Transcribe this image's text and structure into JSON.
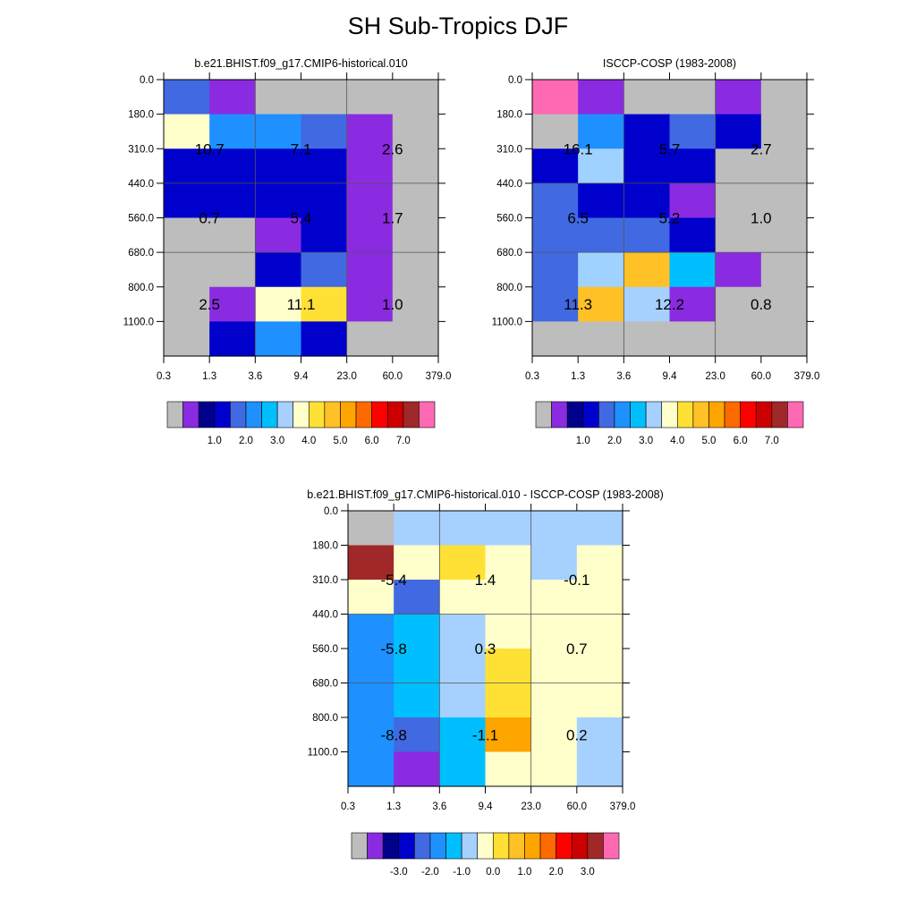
{
  "page_title": "SH Sub-Tropics DJF",
  "chart_data": [
    {
      "type": "heatmap",
      "id": "model",
      "title": "b.e21.BHIST.f09_g17.CMIP6-historical.010",
      "x_ticks": [
        "0.3",
        "1.3",
        "3.6",
        "9.4",
        "23.0",
        "60.0",
        "379.0"
      ],
      "y_ticks": [
        "0.0",
        "180.0",
        "310.0",
        "440.0",
        "560.0",
        "680.0",
        "800.0",
        "1100.0"
      ],
      "cells_note": "cells[row][col]; rows top (0.0 hPa) to bottom (1100.0 hPa); values are palette color indices",
      "cells": [
        [
          4,
          1,
          0,
          0,
          0,
          0
        ],
        [
          9,
          5,
          5,
          4,
          1,
          0
        ],
        [
          3,
          3,
          3,
          3,
          1,
          0
        ],
        [
          3,
          3,
          3,
          3,
          1,
          0
        ],
        [
          0,
          0,
          1,
          3,
          1,
          0
        ],
        [
          0,
          0,
          3,
          4,
          1,
          0
        ],
        [
          0,
          1,
          9,
          10,
          1,
          0
        ],
        [
          0,
          3,
          5,
          3,
          0,
          0
        ]
      ],
      "block_labels": [
        {
          "label": "10.7",
          "col_block": 0,
          "row_block": 0
        },
        {
          "label": "7.1",
          "col_block": 1,
          "row_block": 0
        },
        {
          "label": "2.6",
          "col_block": 2,
          "row_block": 0
        },
        {
          "label": "0.7",
          "col_block": 0,
          "row_block": 1
        },
        {
          "label": "5.4",
          "col_block": 1,
          "row_block": 1
        },
        {
          "label": "1.7",
          "col_block": 2,
          "row_block": 1
        },
        {
          "label": "2.5",
          "col_block": 0,
          "row_block": 2
        },
        {
          "label": "11.1",
          "col_block": 1,
          "row_block": 2
        },
        {
          "label": "1.0",
          "col_block": 2,
          "row_block": 2
        }
      ],
      "colorbar_labels": [
        "1.0",
        "2.0",
        "3.0",
        "4.0",
        "5.0",
        "6.0",
        "7.0"
      ]
    },
    {
      "type": "heatmap",
      "id": "obs",
      "title": "ISCCP-COSP (1983-2008)",
      "x_ticks": [
        "0.3",
        "1.3",
        "3.6",
        "9.4",
        "23.0",
        "60.0",
        "379.0"
      ],
      "y_ticks": [
        "0.0",
        "180.0",
        "310.0",
        "440.0",
        "560.0",
        "680.0",
        "800.0",
        "1100.0"
      ],
      "cells_note": "cells[row][col]; rows top (0.0 hPa) to bottom (1100.0 hPa); values are palette color indices",
      "cells": [
        [
          17,
          1,
          0,
          0,
          1,
          0
        ],
        [
          0,
          5,
          3,
          4,
          3,
          0
        ],
        [
          3,
          7,
          3,
          3,
          0,
          0
        ],
        [
          4,
          3,
          3,
          1,
          0,
          0
        ],
        [
          4,
          4,
          4,
          3,
          0,
          0
        ],
        [
          4,
          7,
          11,
          6,
          1,
          0
        ],
        [
          4,
          11,
          8,
          1,
          0,
          0
        ],
        [
          0,
          0,
          0,
          0,
          0,
          0
        ]
      ],
      "block_labels": [
        {
          "label": "16.1",
          "col_block": 0,
          "row_block": 0
        },
        {
          "label": "5.7",
          "col_block": 1,
          "row_block": 0
        },
        {
          "label": "2.7",
          "col_block": 2,
          "row_block": 0
        },
        {
          "label": "6.5",
          "col_block": 0,
          "row_block": 1
        },
        {
          "label": "5.2",
          "col_block": 1,
          "row_block": 1
        },
        {
          "label": "1.0",
          "col_block": 2,
          "row_block": 1
        },
        {
          "label": "11.3",
          "col_block": 0,
          "row_block": 2
        },
        {
          "label": "12.2",
          "col_block": 1,
          "row_block": 2
        },
        {
          "label": "0.8",
          "col_block": 2,
          "row_block": 2
        }
      ],
      "colorbar_labels": [
        "1.0",
        "2.0",
        "3.0",
        "4.0",
        "5.0",
        "6.0",
        "7.0"
      ]
    },
    {
      "type": "heatmap",
      "id": "diff",
      "title": "b.e21.BHIST.f09_g17.CMIP6-historical.010 - ISCCP-COSP (1983-2008)",
      "x_ticks": [
        "0.3",
        "1.3",
        "3.6",
        "9.4",
        "23.0",
        "60.0",
        "379.0"
      ],
      "y_ticks": [
        "0.0",
        "180.0",
        "310.0",
        "440.0",
        "560.0",
        "680.0",
        "800.0",
        "1100.0"
      ],
      "cells_note": "cells[row][col]; rows top (0.0 hPa) to bottom (1100.0 hPa); values are palette color indices",
      "cells": [
        [
          0,
          8,
          8,
          8,
          8,
          8
        ],
        [
          16,
          9,
          10,
          9,
          8,
          9
        ],
        [
          9,
          4,
          9,
          9,
          9,
          9
        ],
        [
          5,
          6,
          8,
          9,
          9,
          9
        ],
        [
          5,
          6,
          8,
          10,
          9,
          9
        ],
        [
          5,
          6,
          8,
          10,
          9,
          9
        ],
        [
          5,
          4,
          6,
          12,
          9,
          8
        ],
        [
          5,
          1,
          6,
          9,
          9,
          8
        ]
      ],
      "block_labels": [
        {
          "label": "-5.4",
          "col_block": 0,
          "row_block": 0
        },
        {
          "label": "1.4",
          "col_block": 1,
          "row_block": 0
        },
        {
          "label": "-0.1",
          "col_block": 2,
          "row_block": 0
        },
        {
          "label": "-5.8",
          "col_block": 0,
          "row_block": 1
        },
        {
          "label": "0.3",
          "col_block": 1,
          "row_block": 1
        },
        {
          "label": "0.7",
          "col_block": 2,
          "row_block": 1
        },
        {
          "label": "-8.8",
          "col_block": 0,
          "row_block": 2
        },
        {
          "label": "-1.1",
          "col_block": 1,
          "row_block": 2
        },
        {
          "label": "0.2",
          "col_block": 2,
          "row_block": 2
        }
      ],
      "colorbar_labels": [
        "-3.0",
        "-2.0",
        "-1.0",
        "0.0",
        "1.0",
        "2.0",
        "3.0"
      ]
    }
  ],
  "palette": [
    "#bdbdbd",
    "#8a2be2",
    "#00008b",
    "#0000cd",
    "#4169e1",
    "#1e90ff",
    "#00bfff",
    "#a0d2ff",
    "#a6d1ff",
    "#ffffcc",
    "#ffe135",
    "#ffc125",
    "#ffa500",
    "#ff6a00",
    "#ff0000",
    "#cc0000",
    "#a02828",
    "#ff69b4"
  ],
  "colorbar_colors": [
    "#bdbdbd",
    "#8a2be2",
    "#00008b",
    "#0000cd",
    "#4169e1",
    "#1e90ff",
    "#00bfff",
    "#a6d1ff",
    "#ffffcc",
    "#ffe135",
    "#ffc125",
    "#ffa500",
    "#ff6a00",
    "#ff0000",
    "#cc0000",
    "#a02828",
    "#ff69b4"
  ]
}
